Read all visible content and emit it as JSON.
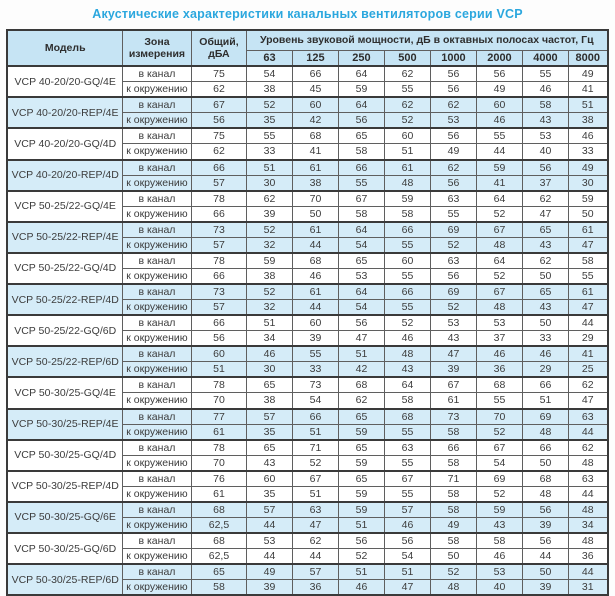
{
  "title": "Акустические характеристики канальных вентиляторов серии VCP",
  "colors": {
    "title_text": "#2BA7DE",
    "header_bg": "#C6E4F4",
    "shaded_row_bg": "#D5ECF8",
    "grid_border": "#5F5F5F",
    "outer_border": "#3A3A3A",
    "body_text": "#3C3C3C"
  },
  "table": {
    "headers": {
      "model": "Модель",
      "zone": "Зона измерения",
      "total": "Общий, дБА",
      "spl_group": "Уровень звуковой мощности, дБ в октавных полосах частот, Гц"
    },
    "frequencies": [
      "63",
      "125",
      "250",
      "500",
      "1000",
      "2000",
      "4000",
      "8000"
    ],
    "zone_labels": {
      "duct": "в канал",
      "ambient": "к окружению"
    },
    "models": [
      {
        "name": "VCP 40-20/20-GQ/4E",
        "shaded": false,
        "zones": [
          {
            "label": "в канал",
            "total": "75",
            "values": [
              54,
              66,
              64,
              62,
              56,
              56,
              55,
              49
            ]
          },
          {
            "label": "к окружению",
            "total": "62",
            "values": [
              38,
              45,
              59,
              55,
              56,
              49,
              46,
              41
            ]
          }
        ]
      },
      {
        "name": "VCP 40-20/20-REP/4E",
        "shaded": true,
        "zones": [
          {
            "label": "в канал",
            "total": "67",
            "values": [
              52,
              60,
              64,
              62,
              62,
              60,
              58,
              51
            ]
          },
          {
            "label": "к окружению",
            "total": "56",
            "values": [
              35,
              42,
              56,
              52,
              53,
              46,
              43,
              38
            ]
          }
        ]
      },
      {
        "name": "VCP 40-20/20-GQ/4D",
        "shaded": false,
        "zones": [
          {
            "label": "в канал",
            "total": "75",
            "values": [
              55,
              68,
              65,
              60,
              56,
              55,
              53,
              46
            ]
          },
          {
            "label": "к окружению",
            "total": "62",
            "values": [
              33,
              41,
              58,
              51,
              49,
              44,
              40,
              33
            ]
          }
        ]
      },
      {
        "name": "VCP 40-20/20-REP/4D",
        "shaded": true,
        "zones": [
          {
            "label": "в канал",
            "total": "66",
            "values": [
              51,
              61,
              66,
              61,
              62,
              59,
              56,
              49
            ]
          },
          {
            "label": "к окружению",
            "total": "57",
            "values": [
              30,
              38,
              55,
              48,
              56,
              41,
              37,
              30
            ]
          }
        ]
      },
      {
        "name": "VCP 50-25/22-GQ/4E",
        "shaded": false,
        "zones": [
          {
            "label": "в канал",
            "total": "78",
            "values": [
              62,
              70,
              67,
              59,
              63,
              64,
              62,
              59
            ]
          },
          {
            "label": "к окружению",
            "total": "66",
            "values": [
              39,
              50,
              58,
              58,
              55,
              52,
              47,
              50
            ]
          }
        ]
      },
      {
        "name": "VCP 50-25/22-REP/4E",
        "shaded": true,
        "zones": [
          {
            "label": "в канал",
            "total": "73",
            "values": [
              52,
              61,
              64,
              66,
              69,
              67,
              65,
              61
            ]
          },
          {
            "label": "к окружению",
            "total": "57",
            "values": [
              32,
              44,
              54,
              55,
              52,
              48,
              43,
              47
            ]
          }
        ]
      },
      {
        "name": "VCP 50-25/22-GQ/4D",
        "shaded": false,
        "zones": [
          {
            "label": "в канал",
            "total": "78",
            "values": [
              59,
              68,
              65,
              60,
              63,
              64,
              62,
              58
            ]
          },
          {
            "label": "к окружению",
            "total": "66",
            "values": [
              38,
              46,
              53,
              55,
              56,
              52,
              50,
              55
            ]
          }
        ]
      },
      {
        "name": "VCP 50-25/22-REP/4D",
        "shaded": true,
        "zones": [
          {
            "label": "в канал",
            "total": "73",
            "values": [
              52,
              61,
              64,
              66,
              69,
              67,
              65,
              61
            ]
          },
          {
            "label": "к окружению",
            "total": "57",
            "values": [
              32,
              44,
              54,
              55,
              52,
              48,
              43,
              47
            ]
          }
        ]
      },
      {
        "name": "VCP 50-25/22-GQ/6D",
        "shaded": false,
        "zones": [
          {
            "label": "в канал",
            "total": "66",
            "values": [
              51,
              60,
              56,
              52,
              53,
              53,
              50,
              44
            ]
          },
          {
            "label": "к окружению",
            "total": "56",
            "values": [
              34,
              39,
              47,
              46,
              43,
              37,
              33,
              29
            ]
          }
        ]
      },
      {
        "name": "VCP 50-25/22-REP/6D",
        "shaded": true,
        "zones": [
          {
            "label": "в канал",
            "total": "60",
            "values": [
              46,
              55,
              51,
              48,
              47,
              46,
              46,
              41
            ]
          },
          {
            "label": "к окружению",
            "total": "51",
            "values": [
              30,
              33,
              42,
              43,
              39,
              36,
              29,
              25
            ]
          }
        ]
      },
      {
        "name": "VCP 50-30/25-GQ/4E",
        "shaded": false,
        "zones": [
          {
            "label": "в канал",
            "total": "78",
            "values": [
              65,
              73,
              68,
              64,
              67,
              68,
              66,
              62
            ]
          },
          {
            "label": "к окружению",
            "total": "70",
            "values": [
              38,
              54,
              62,
              58,
              61,
              55,
              51,
              47
            ]
          }
        ]
      },
      {
        "name": "VCP 50-30/25-REP/4E",
        "shaded": true,
        "zones": [
          {
            "label": "в канал",
            "total": "77",
            "values": [
              57,
              66,
              65,
              68,
              73,
              70,
              69,
              63
            ]
          },
          {
            "label": "к окружению",
            "total": "61",
            "values": [
              35,
              51,
              59,
              55,
              58,
              52,
              48,
              44
            ]
          }
        ]
      },
      {
        "name": "VCP 50-30/25-GQ/4D",
        "shaded": false,
        "zones": [
          {
            "label": "в канал",
            "total": "78",
            "values": [
              65,
              71,
              65,
              63,
              66,
              67,
              66,
              62
            ]
          },
          {
            "label": "к окружению",
            "total": "70",
            "values": [
              43,
              52,
              59,
              55,
              58,
              54,
              50,
              48
            ]
          }
        ]
      },
      {
        "name": "VCP 50-30/25-REP/4D",
        "shaded": false,
        "zones": [
          {
            "label": "в канал",
            "total": "76",
            "values": [
              60,
              67,
              65,
              67,
              71,
              69,
              68,
              63
            ]
          },
          {
            "label": "к окружению",
            "total": "61",
            "values": [
              35,
              51,
              59,
              55,
              58,
              52,
              48,
              44
            ]
          }
        ]
      },
      {
        "name": "VCP 50-30/25-GQ/6E",
        "shaded": true,
        "zones": [
          {
            "label": "в канал",
            "total": "68",
            "values": [
              57,
              63,
              59,
              57,
              58,
              59,
              56,
              48
            ]
          },
          {
            "label": "к окружению",
            "total": "62,5",
            "values": [
              44,
              47,
              51,
              46,
              49,
              43,
              39,
              34
            ]
          }
        ]
      },
      {
        "name": "VCP 50-30/25-GQ/6D",
        "shaded": false,
        "zones": [
          {
            "label": "в канал",
            "total": "68",
            "values": [
              53,
              62,
              56,
              56,
              58,
              58,
              56,
              48
            ]
          },
          {
            "label": "к окружению",
            "total": "62,5",
            "values": [
              44,
              44,
              52,
              54,
              50,
              46,
              44,
              36
            ]
          }
        ]
      },
      {
        "name": "VCP 50-30/25-REP/6D",
        "shaded": true,
        "zones": [
          {
            "label": "в канал",
            "total": "65",
            "values": [
              49,
              57,
              51,
              51,
              52,
              53,
              50,
              44
            ]
          },
          {
            "label": "к окружению",
            "total": "58",
            "values": [
              39,
              36,
              46,
              47,
              48,
              40,
              39,
              31
            ]
          }
        ]
      }
    ]
  }
}
